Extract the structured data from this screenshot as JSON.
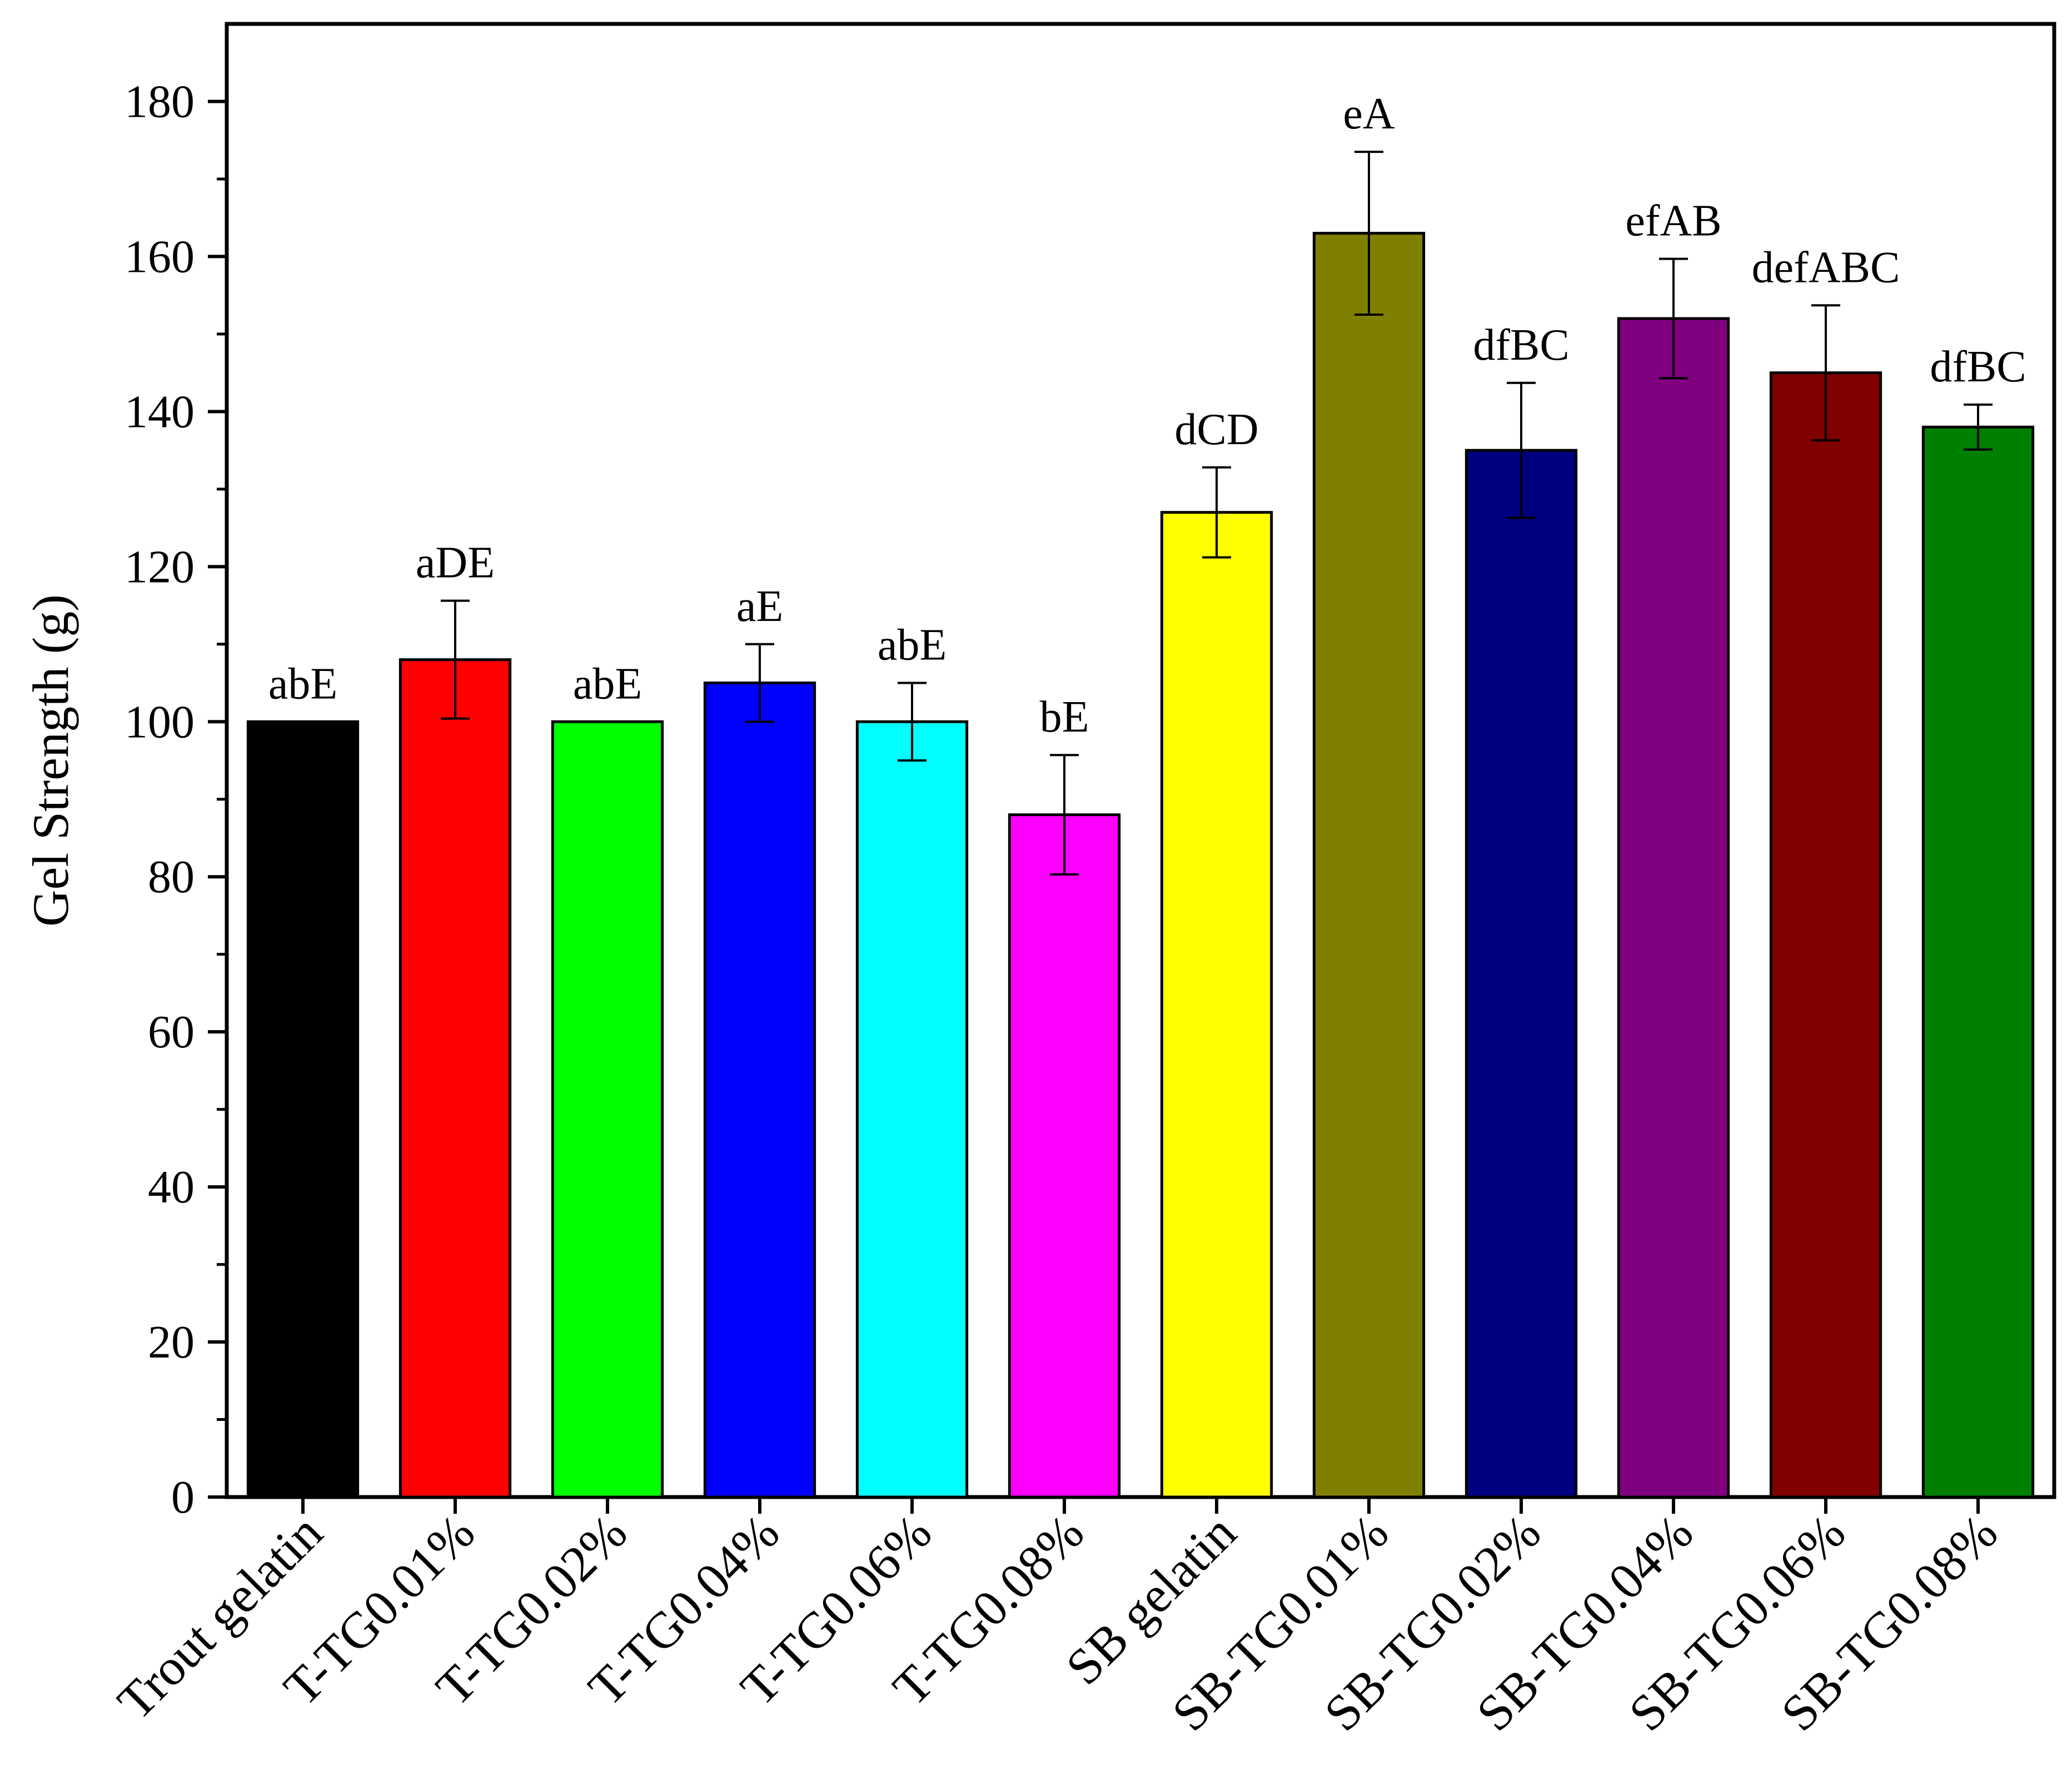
{
  "chart_data": {
    "type": "bar",
    "title": "",
    "xlabel": "",
    "ylabel": "Gel Strength (g)",
    "ylim": [
      0,
      190
    ],
    "yticks": [
      "0",
      "20",
      "40",
      "60",
      "80",
      "100",
      "120",
      "140",
      "160",
      "180"
    ],
    "categories": [
      "Trout gelatin",
      "T-TG0.01%",
      "T-TG0.02%",
      "T-TG0.04%",
      "T-TG0.06%",
      "T-TG0.08%",
      "SB gelatin",
      "SB-TG0.01%",
      "SB-TG0.02%",
      "SB-TG0.04%",
      "SB-TG0.06%",
      "SB-TG0.08%"
    ],
    "values": [
      100,
      108,
      100,
      105,
      100,
      88,
      127,
      163,
      135,
      152,
      145,
      138
    ],
    "errors": [
      0,
      7.6,
      0,
      5,
      5,
      7.7,
      5.8,
      10.5,
      8.7,
      7.7,
      8.7,
      2.9
    ],
    "labels": [
      "abE",
      "aDE",
      "abE",
      "aE",
      "abE",
      "bE",
      "dCD",
      "eA",
      "dfBC",
      "efAB",
      "defABC",
      "dfBC"
    ],
    "colors": [
      "#000000",
      "#ff0000",
      "#00ff00",
      "#0000ff",
      "#00ffff",
      "#ff00ff",
      "#ffff00",
      "#808000",
      "#000080",
      "#800080",
      "#800000",
      "#008000"
    ],
    "grid": false,
    "legend": "none"
  }
}
